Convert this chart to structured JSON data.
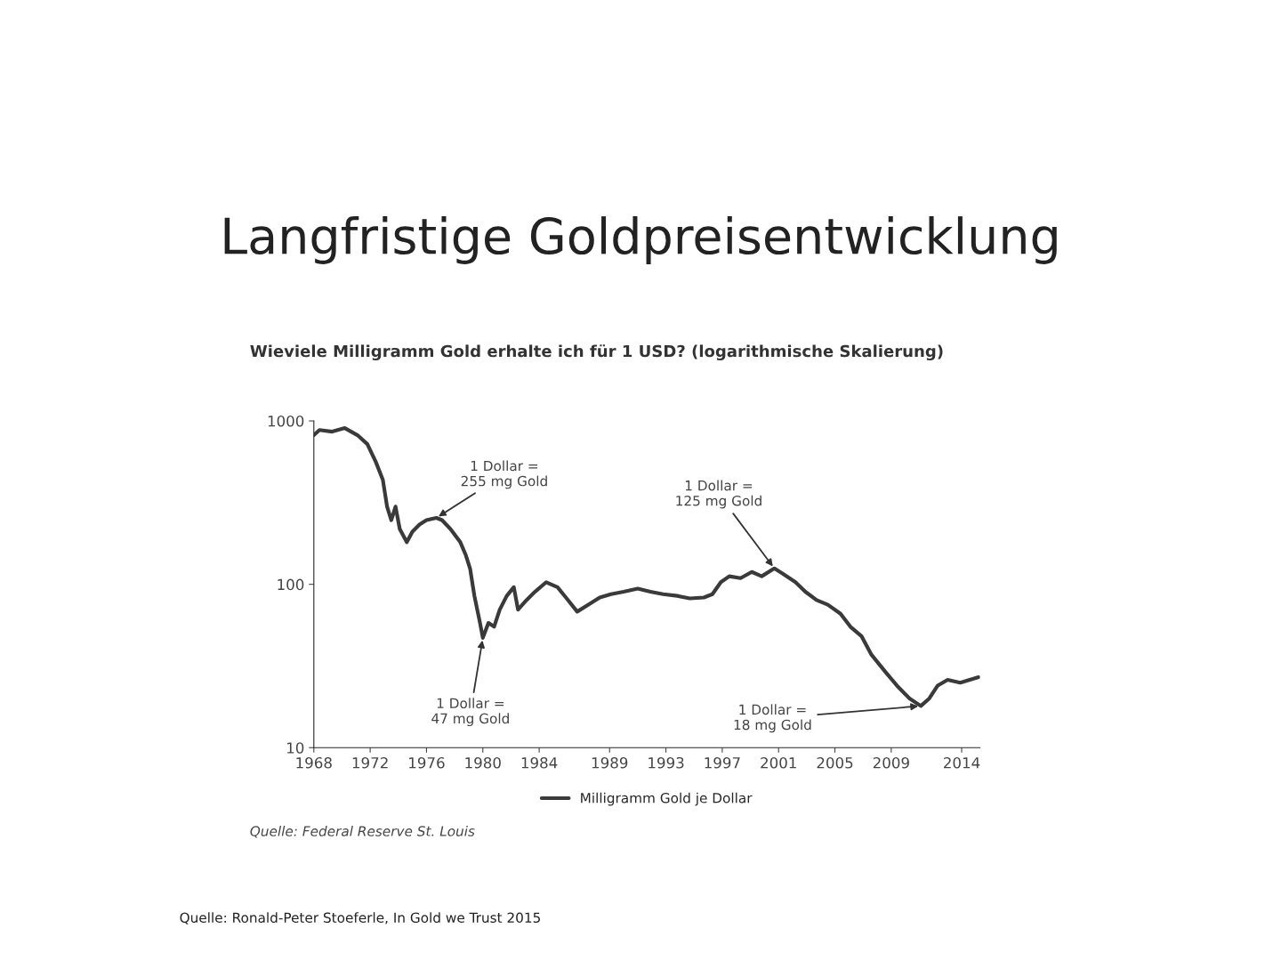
{
  "chart_data": {
    "type": "line",
    "title": "Langfristige Goldpreisentwicklung",
    "subtitle": "Wieviele Milligramm Gold erhalte ich für 1 USD? (logarithmische Skalierung)",
    "x": [
      1968.0,
      1968.4,
      1969.3,
      1970.2,
      1971.1,
      1971.8,
      1972.4,
      1972.9,
      1973.2,
      1973.5,
      1973.8,
      1974.1,
      1974.6,
      1975.0,
      1975.5,
      1976.0,
      1976.7,
      1977.1,
      1977.7,
      1978.4,
      1978.8,
      1979.1,
      1979.4,
      1979.8,
      1980.0,
      1980.4,
      1980.8,
      1981.2,
      1981.7,
      1982.2,
      1982.5,
      1983.1,
      1983.7,
      1984.5,
      1985.3,
      1985.9,
      1986.7,
      1987.5,
      1988.3,
      1989.1,
      1990.0,
      1991.0,
      1991.9,
      1992.8,
      1993.8,
      1994.7,
      1995.7,
      1996.3,
      1996.9,
      1997.5,
      1998.3,
      1999.1,
      1999.8,
      2000.7,
      2001.3,
      2002.2,
      2002.9,
      2003.7,
      2004.5,
      2005.4,
      2006.1,
      2006.9,
      2007.6,
      2008.6,
      2009.4,
      2010.3,
      2011.1,
      2011.7,
      2012.3,
      2013.0,
      2013.9,
      2015.2
    ],
    "series": [
      {
        "name": "Milligramm Gold je Dollar",
        "color": "#3a3a3a",
        "values": [
          818,
          880,
          860,
          904,
          818,
          721,
          561,
          436,
          299,
          247,
          299,
          218,
          181,
          210,
          232,
          247,
          255,
          247,
          218,
          181,
          150,
          124,
          85,
          58,
          47,
          58,
          55,
          70,
          85,
          96,
          70,
          80,
          90,
          103,
          96,
          83,
          68,
          75,
          83,
          87,
          90,
          94,
          90,
          87,
          85,
          82,
          83,
          87,
          103,
          112,
          109,
          119,
          112,
          125,
          116,
          103,
          90,
          80,
          75,
          66,
          55,
          48,
          37,
          29,
          24,
          20,
          18,
          20,
          24,
          26,
          25,
          27
        ]
      }
    ],
    "log": "y",
    "ylim": [
      10,
      1000
    ],
    "yticks": [
      10,
      100,
      1000
    ],
    "xlim": [
      1968.0,
      2015.3
    ],
    "xticks": [
      1968,
      1972,
      1976,
      1980,
      1984,
      1989,
      1993,
      1997,
      2001,
      2005,
      2009,
      2014
    ],
    "grid": false,
    "legend": "bottom",
    "annotations": [
      {
        "text": "1 Dollar =\n255 mg Gold",
        "x": 1976.7,
        "y": 255
      },
      {
        "text": "1 Dollar =\n47 mg Gold",
        "x": 1980.0,
        "y": 47
      },
      {
        "text": "1 Dollar =\n125 mg Gold",
        "x": 2000.7,
        "y": 125
      },
      {
        "text": "1 Dollar =\n18 mg Gold",
        "x": 2011.1,
        "y": 18
      },
      "Quelle: Federal Reserve St. Louis",
      "Quelle: Ronald-Peter Stoeferle, In Gold we Trust 2015"
    ]
  }
}
